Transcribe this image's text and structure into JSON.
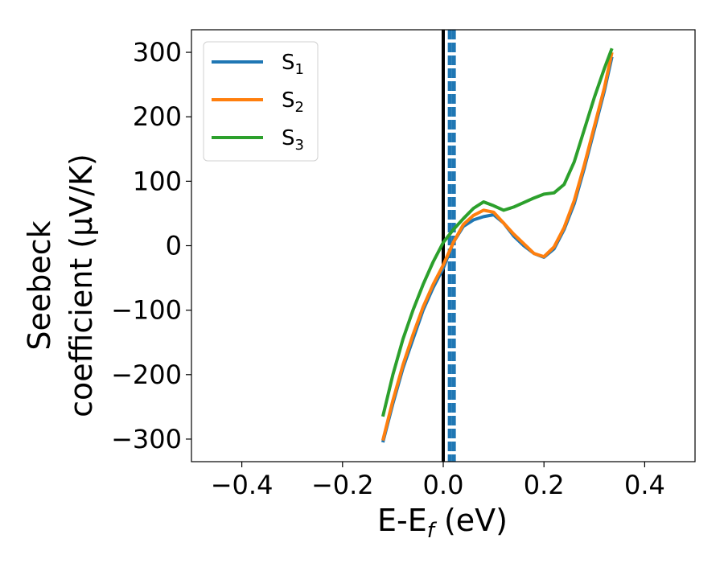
{
  "chart_data": {
    "type": "line",
    "title": "",
    "xlabel": {
      "main": "E-E",
      "sub": "f",
      "unit": " (eV)"
    },
    "ylabel": {
      "line1": "Seebeck",
      "line2": "coefficient  (μV/K)"
    },
    "xlim": [
      -0.5,
      0.5
    ],
    "ylim": [
      -335,
      335
    ],
    "xticks": [
      -0.4,
      -0.2,
      0.0,
      0.2,
      0.4
    ],
    "xtick_labels": [
      "−0.4",
      "−0.2",
      "0.0",
      "0.2",
      "0.4"
    ],
    "yticks": [
      -300,
      -200,
      -100,
      0,
      100,
      200,
      300
    ],
    "ytick_labels": [
      "−300",
      "−200",
      "−100",
      "0",
      "100",
      "200",
      "300"
    ],
    "grid": false,
    "legend_position": "top-left",
    "vertical_lines": [
      {
        "x": 0.0,
        "style": "solid",
        "color": "#000000"
      },
      {
        "x": 0.013,
        "style": "dashed",
        "color": "#1f77b4"
      },
      {
        "x": 0.021,
        "style": "dashed",
        "color": "#1f77b4"
      }
    ],
    "series": [
      {
        "name": "S",
        "sub": "1",
        "color": "#1f77b4",
        "points": [
          [
            -0.12,
            -305
          ],
          [
            -0.1,
            -245
          ],
          [
            -0.08,
            -190
          ],
          [
            -0.06,
            -145
          ],
          [
            -0.04,
            -100
          ],
          [
            -0.02,
            -65
          ],
          [
            0.0,
            -35
          ],
          [
            0.02,
            5
          ],
          [
            0.04,
            30
          ],
          [
            0.06,
            40
          ],
          [
            0.08,
            45
          ],
          [
            0.1,
            48
          ],
          [
            0.12,
            35
          ],
          [
            0.14,
            15
          ],
          [
            0.16,
            0
          ],
          [
            0.18,
            -12
          ],
          [
            0.2,
            -18
          ],
          [
            0.22,
            -5
          ],
          [
            0.24,
            25
          ],
          [
            0.26,
            65
          ],
          [
            0.28,
            120
          ],
          [
            0.3,
            180
          ],
          [
            0.32,
            240
          ],
          [
            0.335,
            293
          ]
        ]
      },
      {
        "name": "S",
        "sub": "2",
        "color": "#ff7f0e",
        "points": [
          [
            -0.12,
            -302
          ],
          [
            -0.1,
            -240
          ],
          [
            -0.08,
            -185
          ],
          [
            -0.06,
            -138
          ],
          [
            -0.04,
            -95
          ],
          [
            -0.02,
            -60
          ],
          [
            0.0,
            -30
          ],
          [
            0.02,
            5
          ],
          [
            0.04,
            33
          ],
          [
            0.06,
            47
          ],
          [
            0.08,
            55
          ],
          [
            0.1,
            52
          ],
          [
            0.12,
            35
          ],
          [
            0.14,
            18
          ],
          [
            0.16,
            3
          ],
          [
            0.18,
            -12
          ],
          [
            0.2,
            -17
          ],
          [
            0.22,
            -2
          ],
          [
            0.24,
            28
          ],
          [
            0.26,
            70
          ],
          [
            0.28,
            125
          ],
          [
            0.3,
            185
          ],
          [
            0.32,
            245
          ],
          [
            0.335,
            300
          ]
        ]
      },
      {
        "name": "S",
        "sub": "3",
        "color": "#2ca02c",
        "points": [
          [
            -0.12,
            -265
          ],
          [
            -0.1,
            -200
          ],
          [
            -0.08,
            -145
          ],
          [
            -0.06,
            -100
          ],
          [
            -0.04,
            -60
          ],
          [
            -0.02,
            -25
          ],
          [
            0.0,
            5
          ],
          [
            0.02,
            25
          ],
          [
            0.04,
            42
          ],
          [
            0.06,
            58
          ],
          [
            0.08,
            68
          ],
          [
            0.1,
            62
          ],
          [
            0.12,
            55
          ],
          [
            0.14,
            60
          ],
          [
            0.16,
            67
          ],
          [
            0.18,
            74
          ],
          [
            0.2,
            80
          ],
          [
            0.22,
            82
          ],
          [
            0.24,
            95
          ],
          [
            0.26,
            130
          ],
          [
            0.28,
            180
          ],
          [
            0.3,
            230
          ],
          [
            0.32,
            275
          ],
          [
            0.335,
            306
          ]
        ]
      }
    ]
  }
}
